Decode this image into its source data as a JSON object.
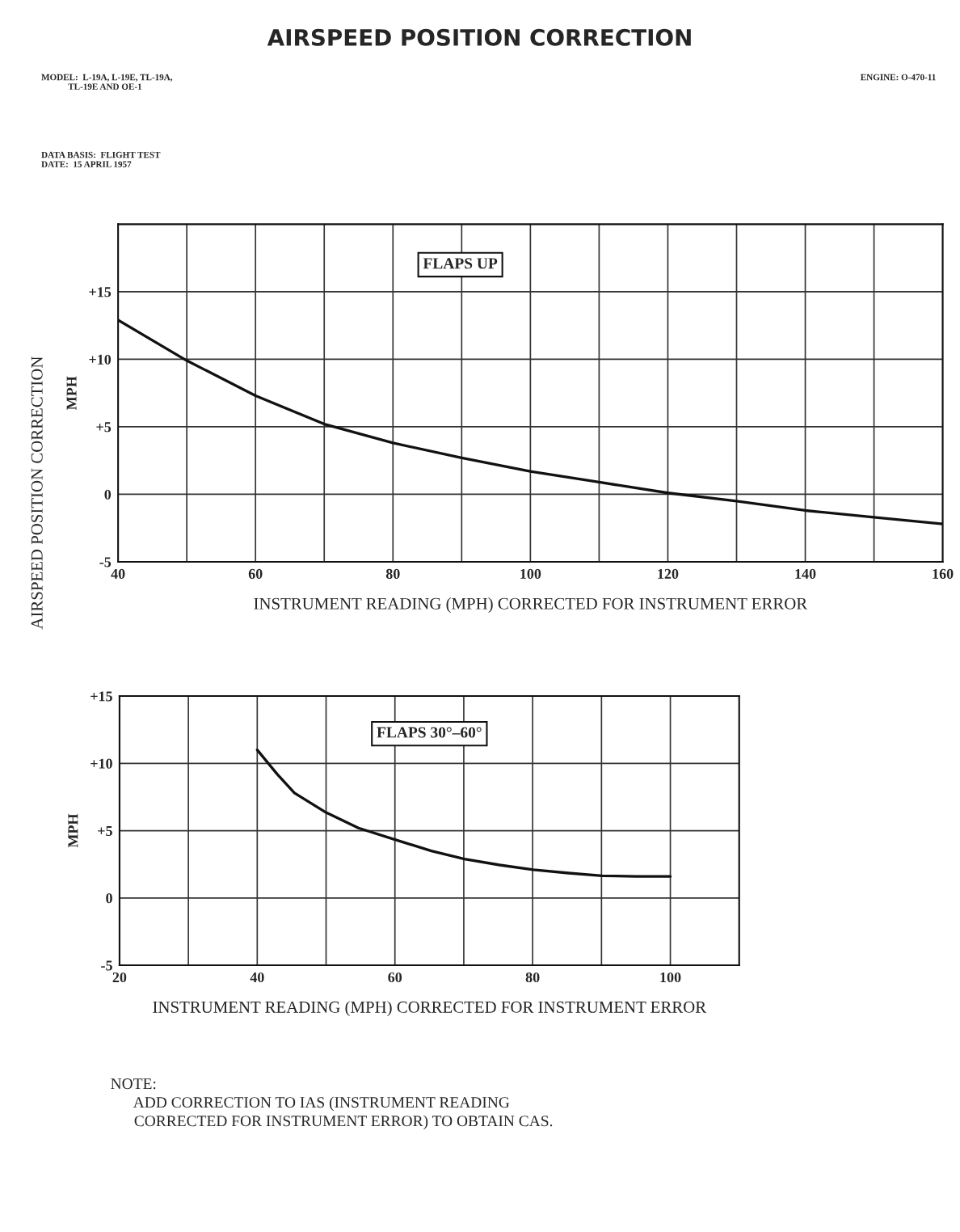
{
  "chart_data": [
    {
      "type": "line",
      "title": "AIRSPEED POSITION CORRECTION",
      "xlabel": "INSTRUMENT READING (MPH) CORRECTED FOR INSTRUMENT ERROR",
      "ylabel": "MPH",
      "annotations": [
        "MODEL:  L-19A, L-19E, TL-19A,\n            TL-19E AND OE-1",
        "ENGINE: O-470-11",
        "DATA BASIS:  FLIGHT TEST\nDATE:  15 APRIL 1957",
        "AIRSPEED POSITION CORRECTION",
        "FLAPS UP"
      ],
      "x": [
        40,
        50,
        60,
        70,
        80,
        90,
        100,
        110,
        120,
        130,
        140,
        150,
        160
      ],
      "series": [
        {
          "color": "#111111",
          "values": [
            12.9,
            9.9,
            7.3,
            5.2,
            3.8,
            2.7,
            1.7,
            0.9,
            0.1,
            -0.5,
            -1.2,
            -1.7,
            -2.2
          ]
        }
      ],
      "xlim": [
        40,
        160
      ],
      "ylim": [
        -5,
        20
      ],
      "xticks": [
        40,
        {
          "value": 50,
          "label": null
        },
        60,
        {
          "value": 70,
          "label": null
        },
        80,
        {
          "value": 90,
          "label": null
        },
        100,
        {
          "value": 110,
          "label": null
        },
        120,
        {
          "value": 130,
          "label": null
        },
        140,
        {
          "value": 150,
          "label": null
        },
        160
      ],
      "yticks": [
        {
          "value": -5,
          "label": "-5"
        },
        0,
        {
          "value": 5,
          "label": "+5"
        },
        {
          "value": 10,
          "label": "+10"
        },
        {
          "value": 15,
          "label": "+15"
        }
      ],
      "grid": true,
      "marker": "none",
      "line_style": "solid"
    },
    {
      "type": "line",
      "xlabel": "INSTRUMENT READING (MPH) CORRECTED FOR INSTRUMENT ERROR",
      "ylabel": "MPH",
      "annotations": [
        "FLAPS 30°–60°",
        "NOTE:\n      ADD CORRECTION TO IAS (INSTRUMENT READING\n      CORRECTED FOR INSTRUMENT ERROR) TO OBTAIN CAS."
      ],
      "x": [
        40,
        42.9,
        45.4,
        50,
        54.7,
        60.2,
        65.3,
        70.1,
        75.2,
        80.1,
        85.2,
        90.1,
        95.1,
        100
      ],
      "series": [
        {
          "color": "#111111",
          "values": [
            11.0,
            9.2,
            7.8,
            6.35,
            5.2,
            4.3,
            3.5,
            2.9,
            2.45,
            2.1,
            1.85,
            1.65,
            1.6,
            1.6
          ]
        }
      ],
      "xlim": [
        20,
        110
      ],
      "ylim": [
        -5,
        15
      ],
      "xticks": [
        20,
        {
          "value": 30,
          "label": null
        },
        40,
        {
          "value": 50,
          "label": null
        },
        60,
        {
          "value": 70,
          "label": null
        },
        80,
        {
          "value": 90,
          "label": null
        },
        100,
        {
          "value": 110,
          "label": null
        }
      ],
      "yticks": [
        {
          "value": -5,
          "label": "-5"
        },
        0,
        {
          "value": 5,
          "label": "+5"
        },
        {
          "value": 10,
          "label": "+10"
        },
        {
          "value": 15,
          "label": "+15"
        }
      ],
      "grid": true,
      "marker": "none",
      "line_style": "solid"
    }
  ]
}
